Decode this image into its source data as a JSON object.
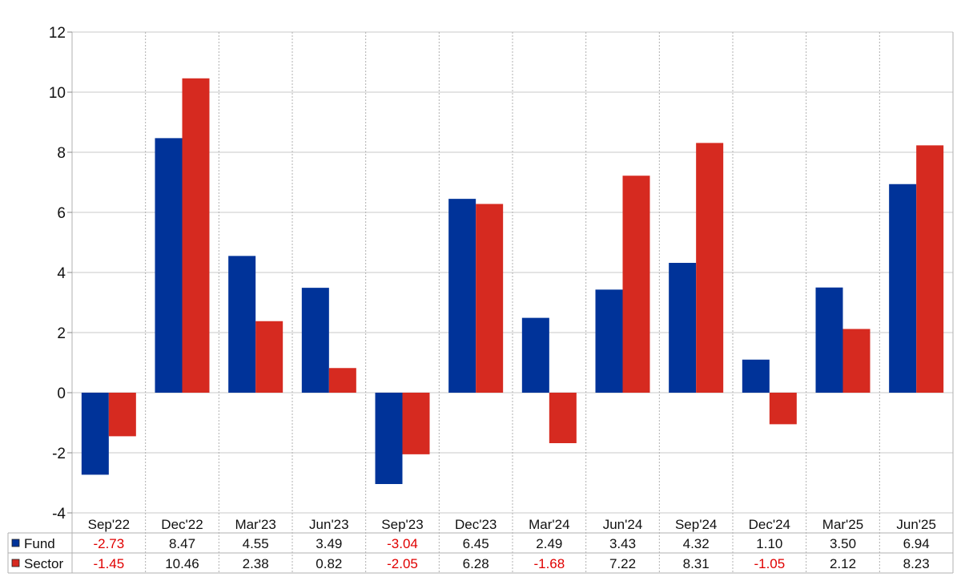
{
  "chart_data": {
    "type": "bar",
    "title": "",
    "xlabel": "",
    "ylabel": "",
    "categories": [
      "Sep'22",
      "Dec'22",
      "Mar'23",
      "Jun'23",
      "Sep'23",
      "Dec'23",
      "Mar'24",
      "Jun'24",
      "Sep'24",
      "Dec'24",
      "Mar'25",
      "Jun'25"
    ],
    "series": [
      {
        "name": "Fund",
        "color": "#003399",
        "values": [
          -2.73,
          8.47,
          4.55,
          3.49,
          -3.04,
          6.45,
          2.49,
          3.43,
          4.32,
          1.1,
          3.5,
          6.94
        ],
        "labels": [
          "-2.73",
          "8.47",
          "4.55",
          "3.49",
          "-3.04",
          "6.45",
          "2.49",
          "3.43",
          "4.32",
          "1.10",
          "3.50",
          "6.94"
        ]
      },
      {
        "name": "Sector",
        "color": "#d62a20",
        "values": [
          -1.45,
          10.46,
          2.38,
          0.82,
          -2.05,
          6.28,
          -1.68,
          7.22,
          8.31,
          -1.05,
          2.12,
          8.23
        ],
        "labels": [
          "-1.45",
          "10.46",
          "2.38",
          "0.82",
          "-2.05",
          "6.28",
          "-1.68",
          "7.22",
          "8.31",
          "-1.05",
          "2.12",
          "8.23"
        ]
      }
    ],
    "ylim": [
      -4,
      12
    ],
    "yticks": [
      "-4",
      "-2",
      "0",
      "2",
      "4",
      "6",
      "8",
      "10",
      "12"
    ],
    "grid": true,
    "legend": "data-table",
    "negative_value_color": "#e00000"
  }
}
